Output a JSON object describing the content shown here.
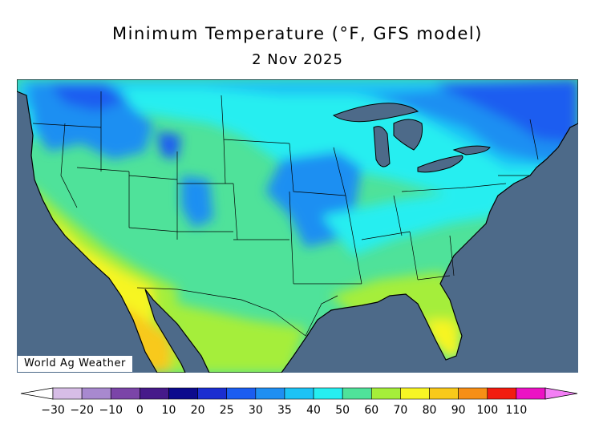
{
  "title": "Minimum Temperature (°F, GFS model)",
  "date": "2 Nov 2025",
  "credit": "World Ag Weather",
  "colors": {
    "ocean": "#4d6a89",
    "lakes": "#4d6a89",
    "border": "#000000"
  },
  "legend": {
    "labels": [
      "−30",
      "−20",
      "−10",
      "0",
      "10",
      "20",
      "25",
      "30",
      "35",
      "40",
      "50",
      "60",
      "70",
      "80",
      "90",
      "100",
      "110"
    ],
    "bins": [
      {
        "color": "#ffffff"
      },
      {
        "color": "#d7bde6"
      },
      {
        "color": "#a889cf"
      },
      {
        "color": "#7b45a8"
      },
      {
        "color": "#461a8a"
      },
      {
        "color": "#0c0a8d"
      },
      {
        "color": "#1b2ed0"
      },
      {
        "color": "#1b5df0"
      },
      {
        "color": "#1f8ff2"
      },
      {
        "color": "#1cc3f5"
      },
      {
        "color": "#26eef0"
      },
      {
        "color": "#4fe29a"
      },
      {
        "color": "#a5ee3a"
      },
      {
        "color": "#f7f524"
      },
      {
        "color": "#f8c91a"
      },
      {
        "color": "#f78f16"
      },
      {
        "color": "#f21c10"
      },
      {
        "color": "#ec12c4"
      },
      {
        "color": "#f37ff5"
      }
    ]
  }
}
